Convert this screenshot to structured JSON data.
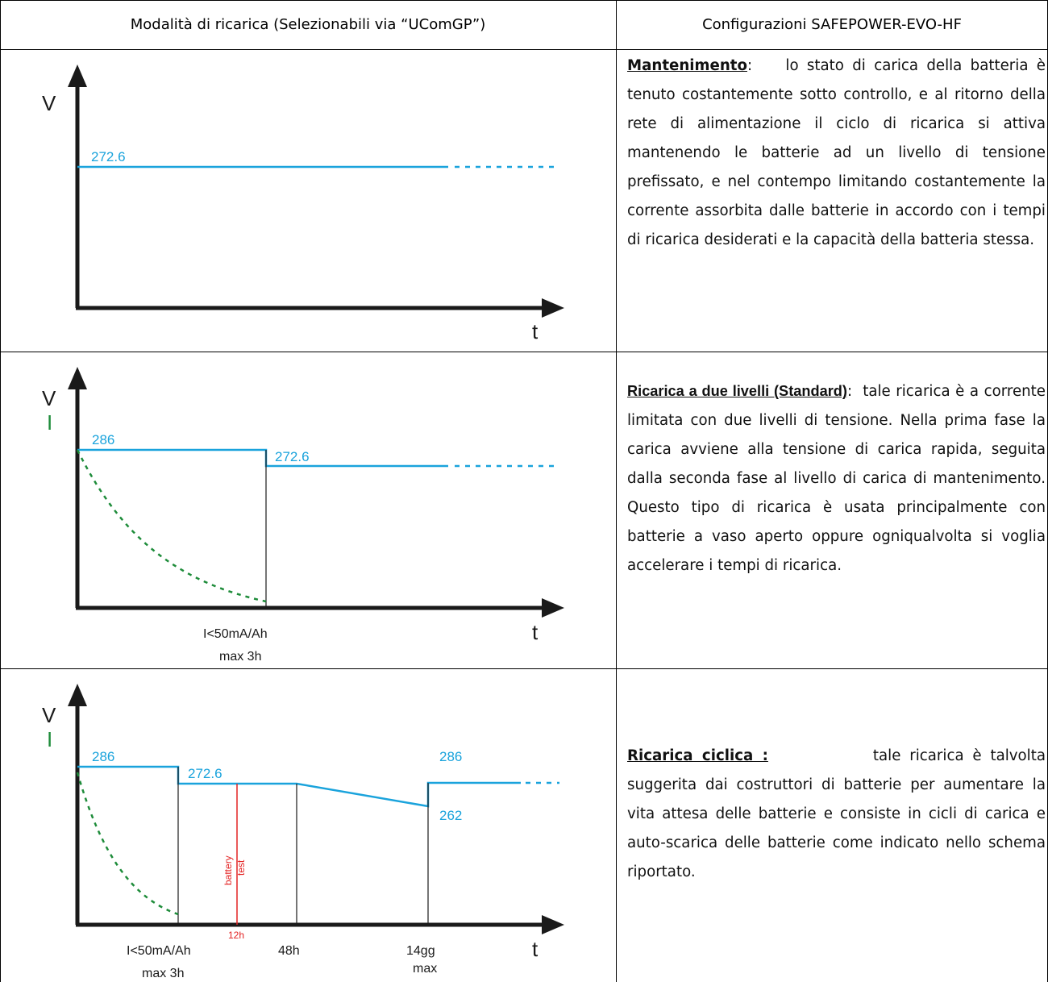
{
  "header": {
    "left": "Modalità di ricarica (Selezionabili via “UComGP”)",
    "right": "Configurazioni SAFEPOWER-EVO-HF"
  },
  "rows": [
    {
      "title": "Mantenimento",
      "sep": ":",
      "body": "lo stato di carica della batteria è tenuto costantemente sotto controllo, e al ritorno della rete di alimentazione il ciclo di ricarica si attiva mantenendo le batterie ad un livello di tensione prefissato, e nel contempo limitando costantemente la corrente assorbita dalle batterie in accordo con i tempi di ricarica desiderati e la capacità della batteria stessa.",
      "diagram": {
        "y_axis": "V",
        "x_axis": "t",
        "voltage": "272.6"
      }
    },
    {
      "title": "Ricarica a due livelli (Standard)",
      "sep": ":",
      "body": "tale ricarica è a corrente limitata con due livelli di tensione. Nella prima fase la carica avviene alla tensione di carica rapida, seguita dalla seconda fase al livello di carica di mantenimento. Questo tipo di ricarica è usata principalmente con batterie a vaso aperto oppure ogniqualvolta si voglia accelerare i tempi di ricarica.",
      "diagram": {
        "y_axis": "V",
        "y_axis_2": "I",
        "x_axis": "t",
        "v_high": "286",
        "v_low": "272.6",
        "tick_1": "I<50mA/Ah",
        "tick_1b": "max 3h"
      }
    },
    {
      "title": "Ricarica ciclica :",
      "sep": "",
      "body": "tale ricarica è talvolta suggerita dai costruttori di batterie per aumentare la vita attesa delle batterie e consiste in cicli di carica e auto-scarica delle batterie come indicato nello schema riportato.",
      "diagram": {
        "y_axis": "V",
        "y_axis_2": "I",
        "x_axis": "t",
        "v_high": "286",
        "v_low": "272.6",
        "v_high_2": "286",
        "v_min": "262",
        "tick_1": "I<50mA/Ah",
        "tick_1b": "max 3h",
        "tick_test": "12h",
        "tick_2": "48h",
        "tick_3": "14gg",
        "tick_3b": "max",
        "test_1": "battery",
        "test_2": "test"
      }
    }
  ],
  "colors": {
    "voltage": "#1aa3dc",
    "current": "#1e8c3a",
    "test": "#e32222",
    "axis": "#1a1a1a"
  }
}
